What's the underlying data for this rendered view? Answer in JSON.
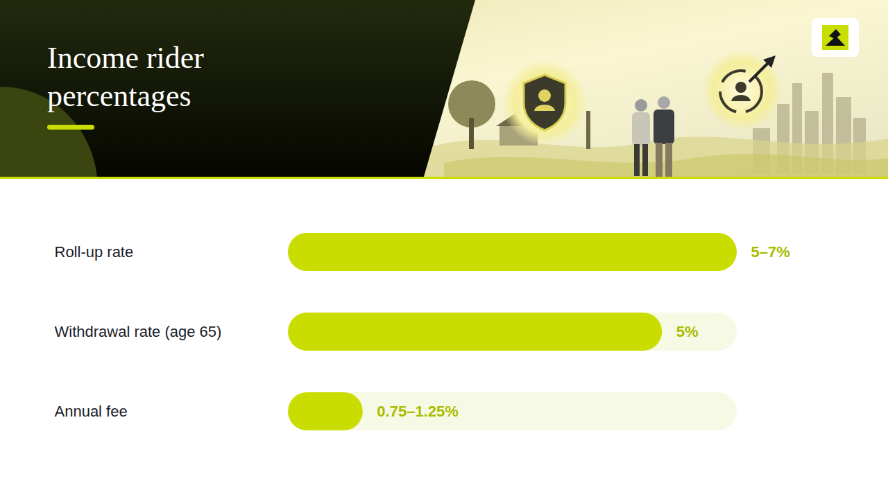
{
  "chart_data": {
    "type": "bar",
    "title": "Income rider percentages",
    "orientation": "horizontal",
    "categories": [
      "Roll-up rate",
      "Withdrawal rate (age 65)",
      "Annual fee"
    ],
    "values": [
      6,
      5,
      1
    ],
    "value_labels": [
      "5–7%",
      "5%",
      "0.75–1.25%"
    ],
    "data_labels": true,
    "color": "#c9dd00",
    "xlim": [
      0,
      6
    ],
    "xticks": [],
    "tick_labels": false,
    "grid": false
  }
}
